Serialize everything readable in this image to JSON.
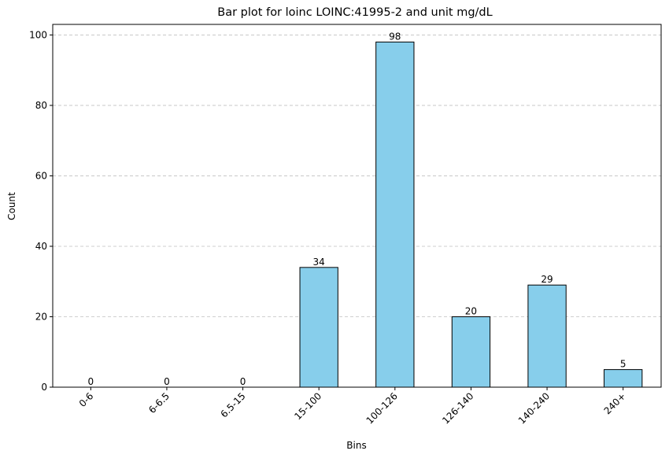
{
  "chart_data": {
    "type": "bar",
    "title": "Bar plot for loinc LOINC:41995-2 and unit mg/dL",
    "xlabel": "Bins",
    "ylabel": "Count",
    "categories": [
      "0-6",
      "6-6.5",
      "6.5-15",
      "15-100",
      "100-126",
      "126-140",
      "140-240",
      "240+"
    ],
    "values": [
      0,
      0,
      0,
      34,
      98,
      20,
      29,
      5
    ],
    "ylim": [
      0,
      103
    ],
    "yticks": [
      0,
      20,
      40,
      60,
      80,
      100
    ],
    "grid": "y-dashed",
    "bar_color": "#87ceeb",
    "edge_color": "#000000",
    "grid_color": "#c0c0c0"
  }
}
